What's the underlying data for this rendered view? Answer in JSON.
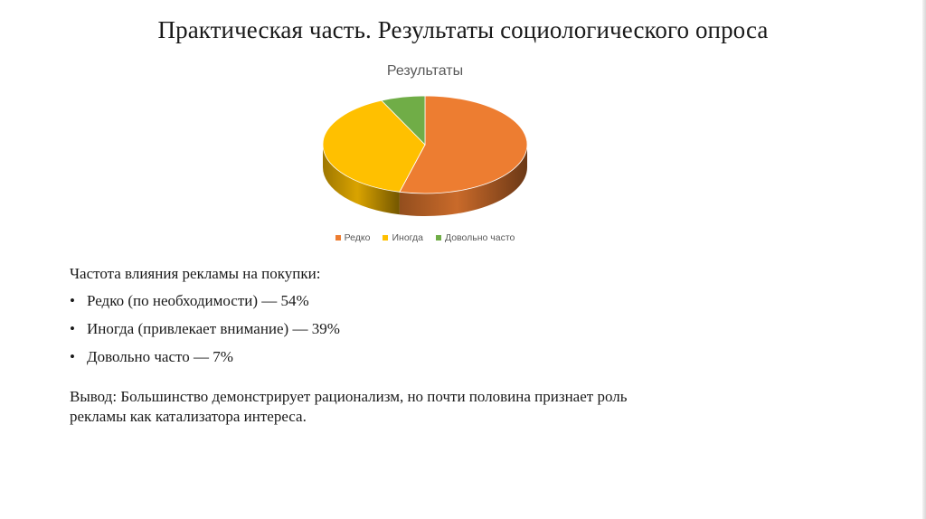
{
  "slide": {
    "title": "Практическая часть. Результаты социологического опроса"
  },
  "chart_data": {
    "type": "pie",
    "title": "Результаты",
    "categories": [
      "Редко",
      "Иногда",
      "Довольно часто"
    ],
    "values": [
      54,
      39,
      7
    ],
    "colors": [
      "#ED7D31",
      "#FFC000",
      "#70AD47"
    ],
    "legend": "bottom",
    "style": "3d"
  },
  "content": {
    "heading": "Частота влияния рекламы на покупки:",
    "bullets": [
      "Редко (по необходимости) — 54%",
      "Иногда (привлекает внимание) — 39%",
      "Довольно часто — 7%"
    ],
    "conclusion_label": "Вывод:",
    "conclusion_text": " Большинство демонстрирует рационализм, но почти половина признает роль рекламы как катализатора интереса."
  }
}
